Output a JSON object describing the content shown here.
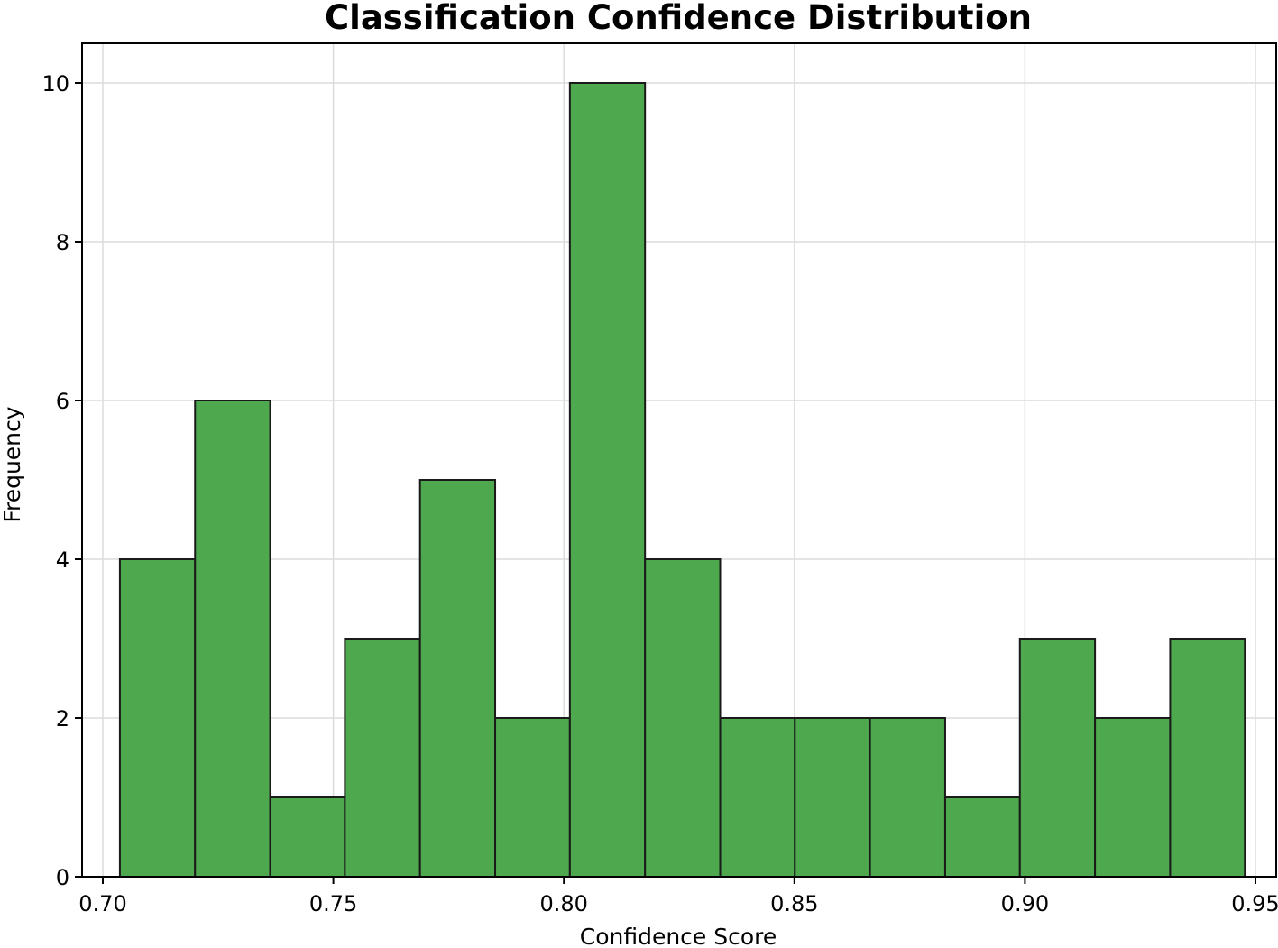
{
  "chart_data": {
    "type": "bar",
    "title": "Classification Confidence Distribution",
    "xlabel": "Confidence Score",
    "ylabel": "Frequency",
    "xlim": [
      0.6955,
      0.9545
    ],
    "ylim": [
      0,
      10.5
    ],
    "x_ticks": [
      0.7,
      0.75,
      0.8,
      0.85,
      0.9,
      0.95
    ],
    "x_tick_labels": [
      "0.70",
      "0.75",
      "0.80",
      "0.85",
      "0.90",
      "0.95"
    ],
    "y_ticks": [
      0,
      2,
      4,
      6,
      8,
      10
    ],
    "y_tick_labels": [
      "0",
      "2",
      "4",
      "6",
      "8",
      "10"
    ],
    "bin_edges": [
      0.7037,
      0.72,
      0.7363,
      0.7525,
      0.7688,
      0.7851,
      0.8013,
      0.8176,
      0.8339,
      0.8501,
      0.8664,
      0.8827,
      0.8989,
      0.9152,
      0.9315,
      0.9477
    ],
    "values": [
      4,
      6,
      1,
      3,
      5,
      2,
      10,
      4,
      2,
      2,
      2,
      1,
      3,
      2,
      3
    ],
    "grid": true,
    "bar_color": "#4ea84e",
    "edge_color": "#1a1a1a"
  }
}
